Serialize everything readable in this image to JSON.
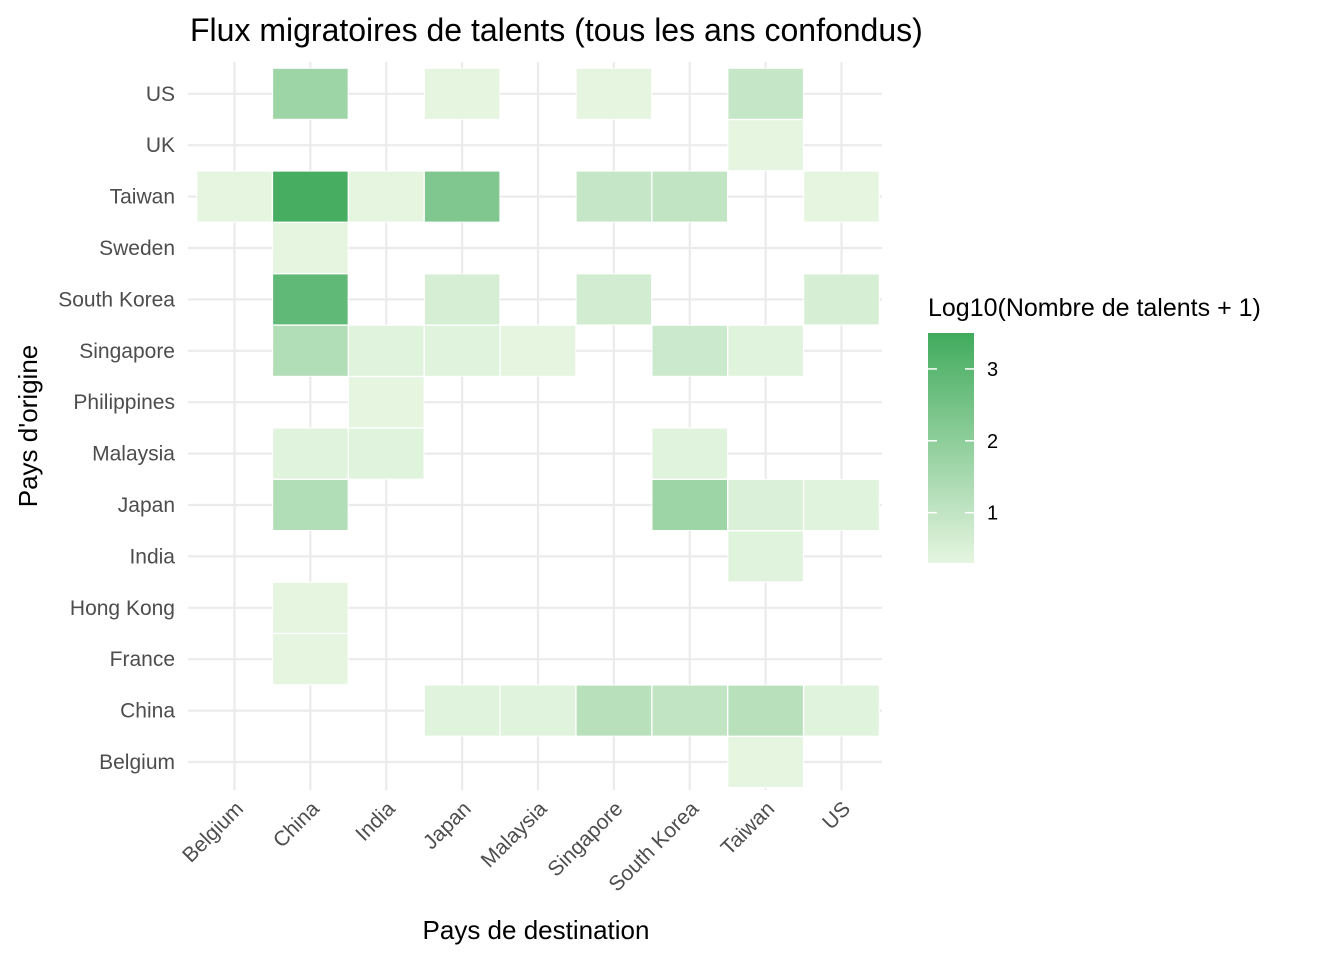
{
  "chart_data": {
    "type": "heatmap",
    "title": "Flux migratoires de talents (tous les ans confondus)",
    "xlabel": "Pays de destination",
    "ylabel": "Pays d'origine",
    "x_categories": [
      "Belgium",
      "China",
      "India",
      "Japan",
      "Malaysia",
      "Singapore",
      "South Korea",
      "Taiwan",
      "US"
    ],
    "y_categories": [
      "Belgium",
      "China",
      "France",
      "Hong Kong",
      "India",
      "Japan",
      "Malaysia",
      "Philippines",
      "Singapore",
      "South Korea",
      "Sweden",
      "Taiwan",
      "UK",
      "US"
    ],
    "grid": true,
    "legend": {
      "title": "Log10(Nombre de talents + 1)",
      "position": "right",
      "ticks": [
        1,
        2,
        3
      ],
      "range": [
        0.3,
        3.5
      ],
      "low_color": "#e5f5e0",
      "high_color": "#41ab5d"
    },
    "cells": [
      {
        "origin": "US",
        "destination": "China",
        "value": 1.7
      },
      {
        "origin": "US",
        "destination": "Japan",
        "value": 0.3
      },
      {
        "origin": "US",
        "destination": "Singapore",
        "value": 0.3
      },
      {
        "origin": "US",
        "destination": "Taiwan",
        "value": 0.9
      },
      {
        "origin": "UK",
        "destination": "Taiwan",
        "value": 0.3
      },
      {
        "origin": "Taiwan",
        "destination": "Belgium",
        "value": 0.3
      },
      {
        "origin": "Taiwan",
        "destination": "China",
        "value": 3.4
      },
      {
        "origin": "Taiwan",
        "destination": "India",
        "value": 0.3
      },
      {
        "origin": "Taiwan",
        "destination": "Japan",
        "value": 2.3
      },
      {
        "origin": "Taiwan",
        "destination": "Singapore",
        "value": 0.9
      },
      {
        "origin": "Taiwan",
        "destination": "South Korea",
        "value": 1.0
      },
      {
        "origin": "Taiwan",
        "destination": "US",
        "value": 0.3
      },
      {
        "origin": "Sweden",
        "destination": "China",
        "value": 0.3
      },
      {
        "origin": "South Korea",
        "destination": "China",
        "value": 2.9
      },
      {
        "origin": "South Korea",
        "destination": "Japan",
        "value": 0.6
      },
      {
        "origin": "South Korea",
        "destination": "Singapore",
        "value": 0.7
      },
      {
        "origin": "South Korea",
        "destination": "US",
        "value": 0.6
      },
      {
        "origin": "Singapore",
        "destination": "China",
        "value": 1.3
      },
      {
        "origin": "Singapore",
        "destination": "India",
        "value": 0.4
      },
      {
        "origin": "Singapore",
        "destination": "Japan",
        "value": 0.4
      },
      {
        "origin": "Singapore",
        "destination": "Malaysia",
        "value": 0.3
      },
      {
        "origin": "Singapore",
        "destination": "South Korea",
        "value": 0.8
      },
      {
        "origin": "Singapore",
        "destination": "Taiwan",
        "value": 0.4
      },
      {
        "origin": "Philippines",
        "destination": "India",
        "value": 0.3
      },
      {
        "origin": "Malaysia",
        "destination": "China",
        "value": 0.4
      },
      {
        "origin": "Malaysia",
        "destination": "India",
        "value": 0.4
      },
      {
        "origin": "Malaysia",
        "destination": "South Korea",
        "value": 0.4
      },
      {
        "origin": "Japan",
        "destination": "China",
        "value": 1.3
      },
      {
        "origin": "Japan",
        "destination": "South Korea",
        "value": 1.7
      },
      {
        "origin": "Japan",
        "destination": "Taiwan",
        "value": 0.5
      },
      {
        "origin": "Japan",
        "destination": "US",
        "value": 0.4
      },
      {
        "origin": "India",
        "destination": "Taiwan",
        "value": 0.4
      },
      {
        "origin": "Hong Kong",
        "destination": "China",
        "value": 0.3
      },
      {
        "origin": "France",
        "destination": "China",
        "value": 0.3
      },
      {
        "origin": "China",
        "destination": "Japan",
        "value": 0.4
      },
      {
        "origin": "China",
        "destination": "Malaysia",
        "value": 0.4
      },
      {
        "origin": "China",
        "destination": "Singapore",
        "value": 1.2
      },
      {
        "origin": "China",
        "destination": "South Korea",
        "value": 1.0
      },
      {
        "origin": "China",
        "destination": "Taiwan",
        "value": 1.2
      },
      {
        "origin": "China",
        "destination": "US",
        "value": 0.4
      },
      {
        "origin": "Belgium",
        "destination": "Taiwan",
        "value": 0.3
      }
    ]
  }
}
